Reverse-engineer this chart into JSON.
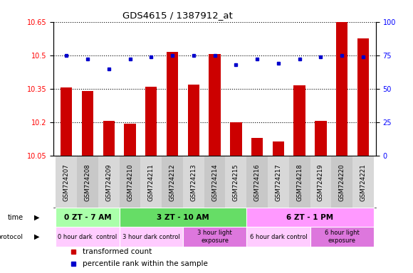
{
  "title": "GDS4615 / 1387912_at",
  "samples": [
    "GSM724207",
    "GSM724208",
    "GSM724209",
    "GSM724210",
    "GSM724211",
    "GSM724212",
    "GSM724213",
    "GSM724214",
    "GSM724215",
    "GSM724216",
    "GSM724217",
    "GSM724218",
    "GSM724219",
    "GSM724220",
    "GSM724221"
  ],
  "red_values": [
    10.355,
    10.34,
    10.205,
    10.195,
    10.36,
    10.515,
    10.37,
    10.505,
    10.2,
    10.13,
    10.115,
    10.365,
    10.205,
    10.65,
    10.575
  ],
  "blue_values": [
    75,
    72,
    65,
    72,
    74,
    75,
    75,
    75,
    68,
    72,
    69,
    72,
    74,
    75,
    74
  ],
  "ylim_left": [
    10.05,
    10.65
  ],
  "ylim_right": [
    0,
    100
  ],
  "yticks_left": [
    10.05,
    10.2,
    10.35,
    10.5,
    10.65
  ],
  "yticks_right": [
    0,
    25,
    50,
    75,
    100
  ],
  "bar_color": "#cc0000",
  "dot_color": "#0000cc",
  "time_groups": [
    {
      "label": "0 ZT - 7 AM",
      "start": 0,
      "end": 3,
      "color": "#aaffaa"
    },
    {
      "label": "3 ZT - 10 AM",
      "start": 3,
      "end": 9,
      "color": "#66dd66"
    },
    {
      "label": "6 ZT - 1 PM",
      "start": 9,
      "end": 15,
      "color": "#ff99ff"
    }
  ],
  "protocol_groups": [
    {
      "label": "0 hour dark  control",
      "start": 0,
      "end": 3,
      "color": "#ffccff"
    },
    {
      "label": "3 hour dark control",
      "start": 3,
      "end": 6,
      "color": "#ffccff"
    },
    {
      "label": "3 hour light\nexposure",
      "start": 6,
      "end": 9,
      "color": "#dd77dd"
    },
    {
      "label": "6 hour dark control",
      "start": 9,
      "end": 12,
      "color": "#ffccff"
    },
    {
      "label": "6 hour light\nexposure",
      "start": 12,
      "end": 15,
      "color": "#dd77dd"
    }
  ],
  "legend_items": [
    {
      "label": "transformed count",
      "color": "#cc0000"
    },
    {
      "label": "percentile rank within the sample",
      "color": "#0000cc"
    }
  ],
  "sample_col_colors": [
    "#d8d8d8",
    "#c8c8c8"
  ]
}
